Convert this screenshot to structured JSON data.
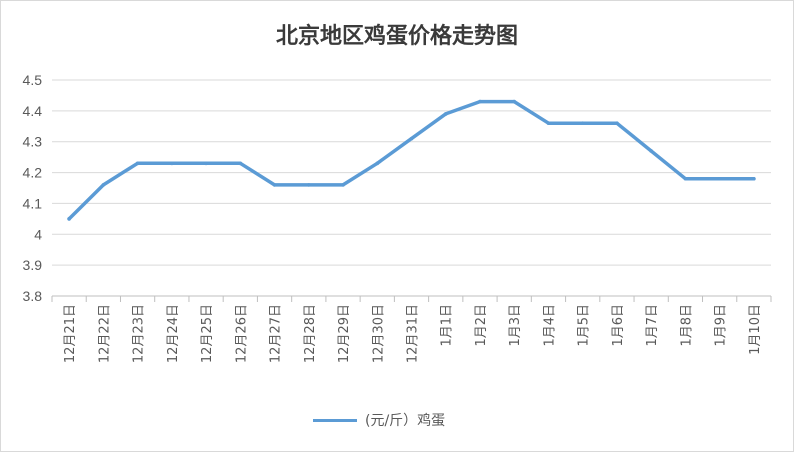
{
  "chart_data": {
    "type": "line",
    "title": "北京地区鸡蛋价格走势图",
    "xlabel": "",
    "ylabel": "",
    "ylim": [
      3.8,
      4.5
    ],
    "yticks": [
      "3.8",
      "3.9",
      "4",
      "4.1",
      "4.2",
      "4.3",
      "4.4",
      "4.5"
    ],
    "grid": true,
    "legend_position": "bottom",
    "categories": [
      "12月21日",
      "12月22日",
      "12月23日",
      "12月24日",
      "12月25日",
      "12月26日",
      "12月27日",
      "12月28日",
      "12月29日",
      "12月30日",
      "12月31日",
      "1月1日",
      "1月2日",
      "1月3日",
      "1月4日",
      "1月5日",
      "1月6日",
      "1月7日",
      "1月8日",
      "1月9日",
      "1月10日"
    ],
    "series": [
      {
        "name": "(元/斤）鸡蛋",
        "color": "#5b9bd5",
        "values": [
          4.05,
          4.16,
          4.23,
          4.23,
          4.23,
          4.23,
          4.16,
          4.16,
          4.16,
          4.23,
          4.31,
          4.39,
          4.43,
          4.43,
          4.36,
          4.36,
          4.36,
          4.27,
          4.18,
          4.18,
          4.18
        ]
      }
    ]
  }
}
